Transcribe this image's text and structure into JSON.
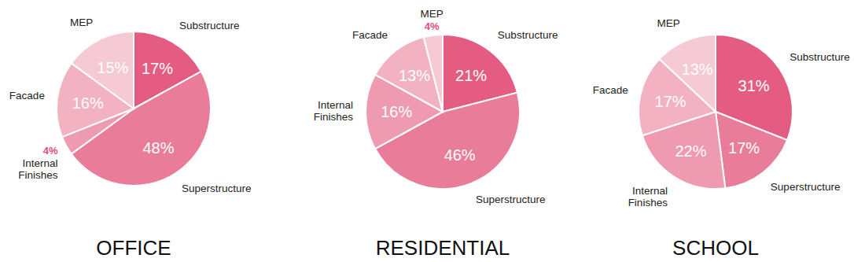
{
  "chart_data": [
    {
      "type": "pie",
      "title": "OFFICE",
      "categories": [
        "Substructure",
        "Superstructure",
        "Internal Finishes",
        "Facade",
        "MEP"
      ],
      "values": [
        17,
        48,
        4,
        16,
        15
      ],
      "value_labels": [
        "17%",
        "48%",
        "4%",
        "16%",
        "15%"
      ],
      "colors": [
        "#e45c82",
        "#e97d99",
        "#ee9ab0",
        "#f2b2c2",
        "#f6cad5"
      ],
      "data_labels": true
    },
    {
      "type": "pie",
      "title": "RESIDENTIAL",
      "categories": [
        "Substructure",
        "Superstructure",
        "Internal Finishes",
        "Facade",
        "MEP"
      ],
      "values": [
        21,
        46,
        16,
        13,
        4
      ],
      "value_labels": [
        "21%",
        "46%",
        "16%",
        "13%",
        "4%"
      ],
      "colors": [
        "#e45c82",
        "#e97d99",
        "#ee9ab0",
        "#f2b2c2",
        "#f6cad5"
      ],
      "data_labels": true
    },
    {
      "type": "pie",
      "title": "SCHOOL",
      "categories": [
        "Substructure",
        "Superstructure",
        "Internal Finishes",
        "Facade",
        "MEP"
      ],
      "values": [
        31,
        17,
        22,
        17,
        13
      ],
      "value_labels": [
        "31%",
        "17%",
        "22%",
        "17%",
        "13%"
      ],
      "colors": [
        "#e45c82",
        "#e97d99",
        "#ee9ab0",
        "#f2b2c2",
        "#f6cad5"
      ],
      "data_labels": true
    }
  ]
}
